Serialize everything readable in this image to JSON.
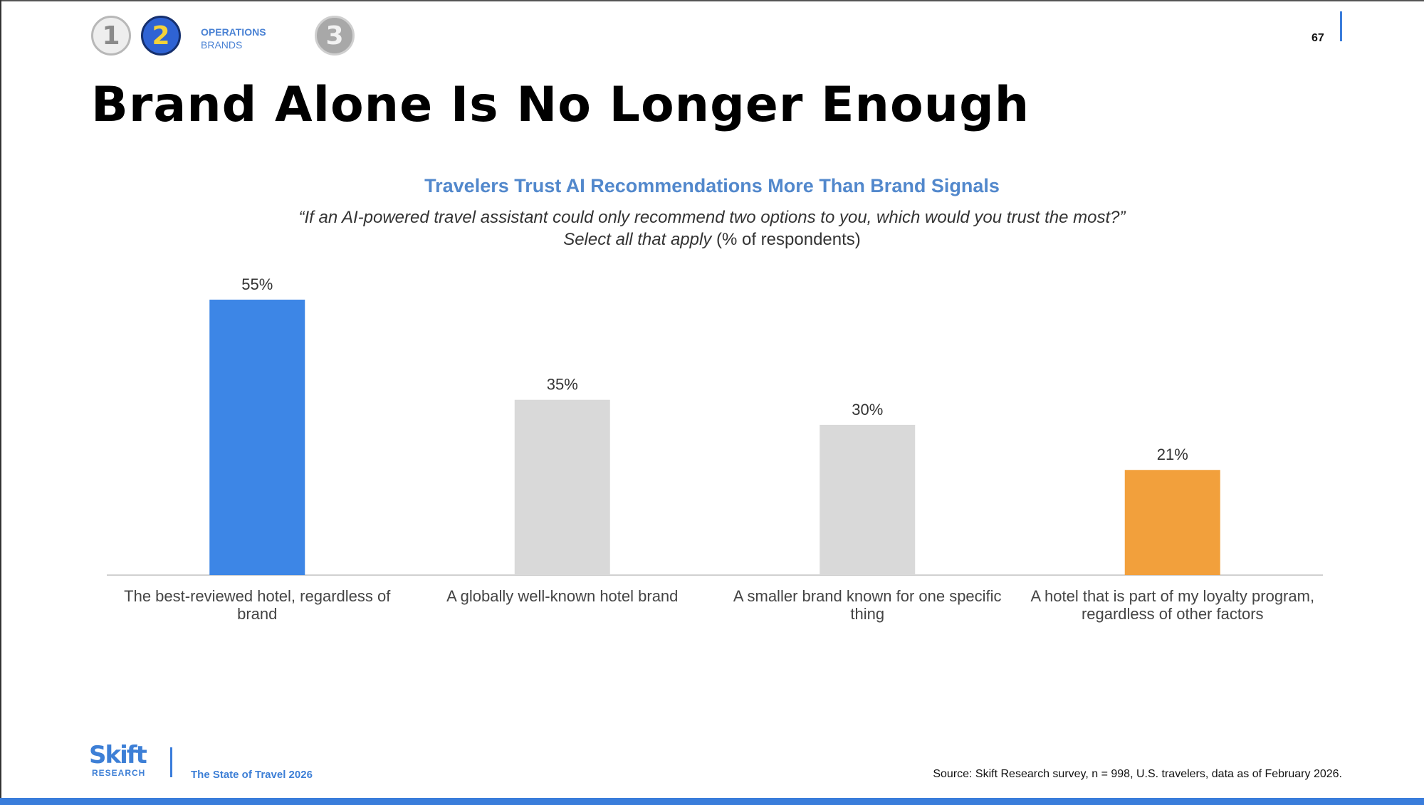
{
  "nav": {
    "steps": [
      "1",
      "2",
      "3"
    ],
    "section": "OPERATIONS",
    "subsection": "BRANDS"
  },
  "page_number": "67",
  "title": "Brand Alone Is No Longer Enough",
  "chart_heading": "Travelers Trust AI Recommendations More Than Brand Signals",
  "chart_question": "“If an AI-powered travel assistant could only recommend two options to you, which would you trust the most?”",
  "chart_instruction": "Select all that apply",
  "chart_unit_note": "(% of respondents)",
  "colors": {
    "highlight_blue": "#3d86e6",
    "neutral_gray": "#d9d9d9",
    "highlight_orange": "#f2a03c",
    "accent": "#3a7ddb"
  },
  "chart_data": {
    "type": "bar",
    "categories": [
      [
        "The best-reviewed hotel, regardless of",
        "brand"
      ],
      [
        "A globally well-known hotel brand"
      ],
      [
        "A smaller brand known for one specific",
        "thing"
      ],
      [
        "A hotel that is part of my loyalty program,",
        "regardless of other factors"
      ]
    ],
    "values": [
      55,
      35,
      30,
      21
    ],
    "value_labels": [
      "55%",
      "35%",
      "30%",
      "21%"
    ],
    "bar_colors": [
      "#3d86e6",
      "#d9d9d9",
      "#d9d9d9",
      "#f2a03c"
    ],
    "ylim": [
      0,
      55
    ],
    "grid": false,
    "legend": "none"
  },
  "footer": {
    "logo_word": "Skift",
    "logo_sub": "RESEARCH",
    "report": "The State of Travel 2026",
    "source": "Source: Skift Research survey, n = 998, U.S. travelers, data as of February 2026."
  }
}
